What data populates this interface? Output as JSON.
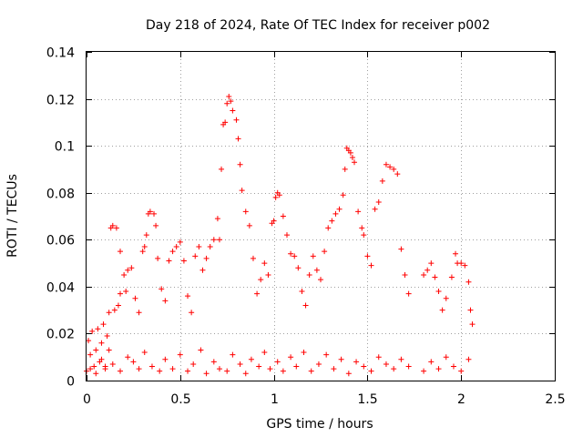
{
  "chart_data": {
    "type": "scatter",
    "title": "Day 218 of 2024, Rate Of TEC Index for receiver p002",
    "xlabel": "GPS time / hours",
    "ylabel": "ROTI / TECUs",
    "xlim": [
      0,
      2.5
    ],
    "ylim": [
      0,
      0.14
    ],
    "x_ticks": [
      0,
      0.5,
      1,
      1.5,
      2,
      2.5
    ],
    "x_tick_labels": [
      "0",
      "0.5",
      "1",
      "1.5",
      "2",
      "2.5"
    ],
    "y_ticks": [
      0,
      0.02,
      0.04,
      0.06,
      0.08,
      0.1,
      0.12,
      0.14
    ],
    "y_tick_labels": [
      "0",
      "0.02",
      "0.04",
      "0.06",
      "0.08",
      "0.1",
      "0.12",
      "0.14"
    ],
    "grid": true,
    "marker": "+",
    "color": "#ff0000",
    "series": [
      {
        "name": "p002",
        "points": [
          [
            0.0,
            0.004
          ],
          [
            0.01,
            0.017
          ],
          [
            0.02,
            0.011
          ],
          [
            0.03,
            0.021
          ],
          [
            0.04,
            0.006
          ],
          [
            0.05,
            0.013
          ],
          [
            0.06,
            0.022
          ],
          [
            0.07,
            0.008
          ],
          [
            0.08,
            0.016
          ],
          [
            0.09,
            0.024
          ],
          [
            0.1,
            0.005
          ],
          [
            0.11,
            0.019
          ],
          [
            0.12,
            0.013
          ],
          [
            0.12,
            0.029
          ],
          [
            0.13,
            0.065
          ],
          [
            0.14,
            0.066
          ],
          [
            0.15,
            0.03
          ],
          [
            0.16,
            0.065
          ],
          [
            0.17,
            0.032
          ],
          [
            0.18,
            0.055
          ],
          [
            0.18,
            0.037
          ],
          [
            0.2,
            0.045
          ],
          [
            0.21,
            0.038
          ],
          [
            0.22,
            0.047
          ],
          [
            0.24,
            0.048
          ],
          [
            0.26,
            0.035
          ],
          [
            0.28,
            0.029
          ],
          [
            0.3,
            0.055
          ],
          [
            0.31,
            0.057
          ],
          [
            0.32,
            0.062
          ],
          [
            0.33,
            0.071
          ],
          [
            0.34,
            0.072
          ],
          [
            0.36,
            0.071
          ],
          [
            0.37,
            0.066
          ],
          [
            0.38,
            0.052
          ],
          [
            0.4,
            0.039
          ],
          [
            0.42,
            0.034
          ],
          [
            0.44,
            0.051
          ],
          [
            0.46,
            0.055
          ],
          [
            0.48,
            0.057
          ],
          [
            0.5,
            0.059
          ],
          [
            0.52,
            0.051
          ],
          [
            0.54,
            0.036
          ],
          [
            0.56,
            0.029
          ],
          [
            0.58,
            0.053
          ],
          [
            0.6,
            0.057
          ],
          [
            0.62,
            0.047
          ],
          [
            0.64,
            0.052
          ],
          [
            0.66,
            0.057
          ],
          [
            0.68,
            0.06
          ],
          [
            0.7,
            0.069
          ],
          [
            0.71,
            0.06
          ],
          [
            0.72,
            0.09
          ],
          [
            0.73,
            0.109
          ],
          [
            0.74,
            0.11
          ],
          [
            0.75,
            0.118
          ],
          [
            0.76,
            0.121
          ],
          [
            0.77,
            0.119
          ],
          [
            0.78,
            0.115
          ],
          [
            0.8,
            0.111
          ],
          [
            0.81,
            0.103
          ],
          [
            0.82,
            0.092
          ],
          [
            0.83,
            0.081
          ],
          [
            0.85,
            0.072
          ],
          [
            0.87,
            0.066
          ],
          [
            0.89,
            0.052
          ],
          [
            0.91,
            0.037
          ],
          [
            0.93,
            0.043
          ],
          [
            0.95,
            0.05
          ],
          [
            0.97,
            0.045
          ],
          [
            0.99,
            0.067
          ],
          [
            1.0,
            0.068
          ],
          [
            1.01,
            0.078
          ],
          [
            1.02,
            0.08
          ],
          [
            1.03,
            0.079
          ],
          [
            1.05,
            0.07
          ],
          [
            1.07,
            0.062
          ],
          [
            1.09,
            0.054
          ],
          [
            1.11,
            0.053
          ],
          [
            1.13,
            0.048
          ],
          [
            1.15,
            0.038
          ],
          [
            1.17,
            0.032
          ],
          [
            1.19,
            0.045
          ],
          [
            1.21,
            0.053
          ],
          [
            1.23,
            0.047
          ],
          [
            1.25,
            0.043
          ],
          [
            1.27,
            0.055
          ],
          [
            1.29,
            0.065
          ],
          [
            1.31,
            0.068
          ],
          [
            1.33,
            0.071
          ],
          [
            1.35,
            0.073
          ],
          [
            1.37,
            0.079
          ],
          [
            1.38,
            0.09
          ],
          [
            1.39,
            0.099
          ],
          [
            1.4,
            0.098
          ],
          [
            1.41,
            0.097
          ],
          [
            1.42,
            0.095
          ],
          [
            1.43,
            0.093
          ],
          [
            1.45,
            0.072
          ],
          [
            1.47,
            0.065
          ],
          [
            1.48,
            0.062
          ],
          [
            1.5,
            0.053
          ],
          [
            1.52,
            0.049
          ],
          [
            1.54,
            0.073
          ],
          [
            1.56,
            0.076
          ],
          [
            1.58,
            0.085
          ],
          [
            1.6,
            0.092
          ],
          [
            1.62,
            0.091
          ],
          [
            1.64,
            0.09
          ],
          [
            1.66,
            0.088
          ],
          [
            1.68,
            0.056
          ],
          [
            1.7,
            0.045
          ],
          [
            1.72,
            0.037
          ],
          [
            1.8,
            0.045
          ],
          [
            1.82,
            0.047
          ],
          [
            1.84,
            0.05
          ],
          [
            1.86,
            0.044
          ],
          [
            1.88,
            0.038
          ],
          [
            1.9,
            0.03
          ],
          [
            1.92,
            0.035
          ],
          [
            1.95,
            0.044
          ],
          [
            1.97,
            0.054
          ],
          [
            1.98,
            0.05
          ],
          [
            2.0,
            0.05
          ],
          [
            2.02,
            0.049
          ],
          [
            2.04,
            0.042
          ],
          [
            2.05,
            0.03
          ],
          [
            2.06,
            0.024
          ],
          [
            0.02,
            0.005
          ],
          [
            0.05,
            0.003
          ],
          [
            0.08,
            0.009
          ],
          [
            0.1,
            0.006
          ],
          [
            0.14,
            0.007
          ],
          [
            0.18,
            0.004
          ],
          [
            0.22,
            0.01
          ],
          [
            0.25,
            0.008
          ],
          [
            0.28,
            0.005
          ],
          [
            0.31,
            0.012
          ],
          [
            0.35,
            0.006
          ],
          [
            0.39,
            0.004
          ],
          [
            0.42,
            0.009
          ],
          [
            0.46,
            0.005
          ],
          [
            0.5,
            0.011
          ],
          [
            0.54,
            0.004
          ],
          [
            0.57,
            0.007
          ],
          [
            0.61,
            0.013
          ],
          [
            0.64,
            0.003
          ],
          [
            0.68,
            0.008
          ],
          [
            0.71,
            0.005
          ],
          [
            0.75,
            0.004
          ],
          [
            0.78,
            0.011
          ],
          [
            0.82,
            0.007
          ],
          [
            0.85,
            0.003
          ],
          [
            0.88,
            0.009
          ],
          [
            0.92,
            0.006
          ],
          [
            0.95,
            0.012
          ],
          [
            0.98,
            0.005
          ],
          [
            1.02,
            0.008
          ],
          [
            1.05,
            0.004
          ],
          [
            1.09,
            0.01
          ],
          [
            1.12,
            0.006
          ],
          [
            1.16,
            0.012
          ],
          [
            1.2,
            0.004
          ],
          [
            1.24,
            0.007
          ],
          [
            1.28,
            0.011
          ],
          [
            1.32,
            0.005
          ],
          [
            1.36,
            0.009
          ],
          [
            1.4,
            0.003
          ],
          [
            1.44,
            0.008
          ],
          [
            1.48,
            0.006
          ],
          [
            1.52,
            0.004
          ],
          [
            1.56,
            0.01
          ],
          [
            1.6,
            0.007
          ],
          [
            1.64,
            0.005
          ],
          [
            1.68,
            0.009
          ],
          [
            1.72,
            0.006
          ],
          [
            1.8,
            0.004
          ],
          [
            1.84,
            0.008
          ],
          [
            1.88,
            0.005
          ],
          [
            1.92,
            0.01
          ],
          [
            1.96,
            0.006
          ],
          [
            2.0,
            0.004
          ],
          [
            2.04,
            0.009
          ]
        ]
      }
    ]
  }
}
